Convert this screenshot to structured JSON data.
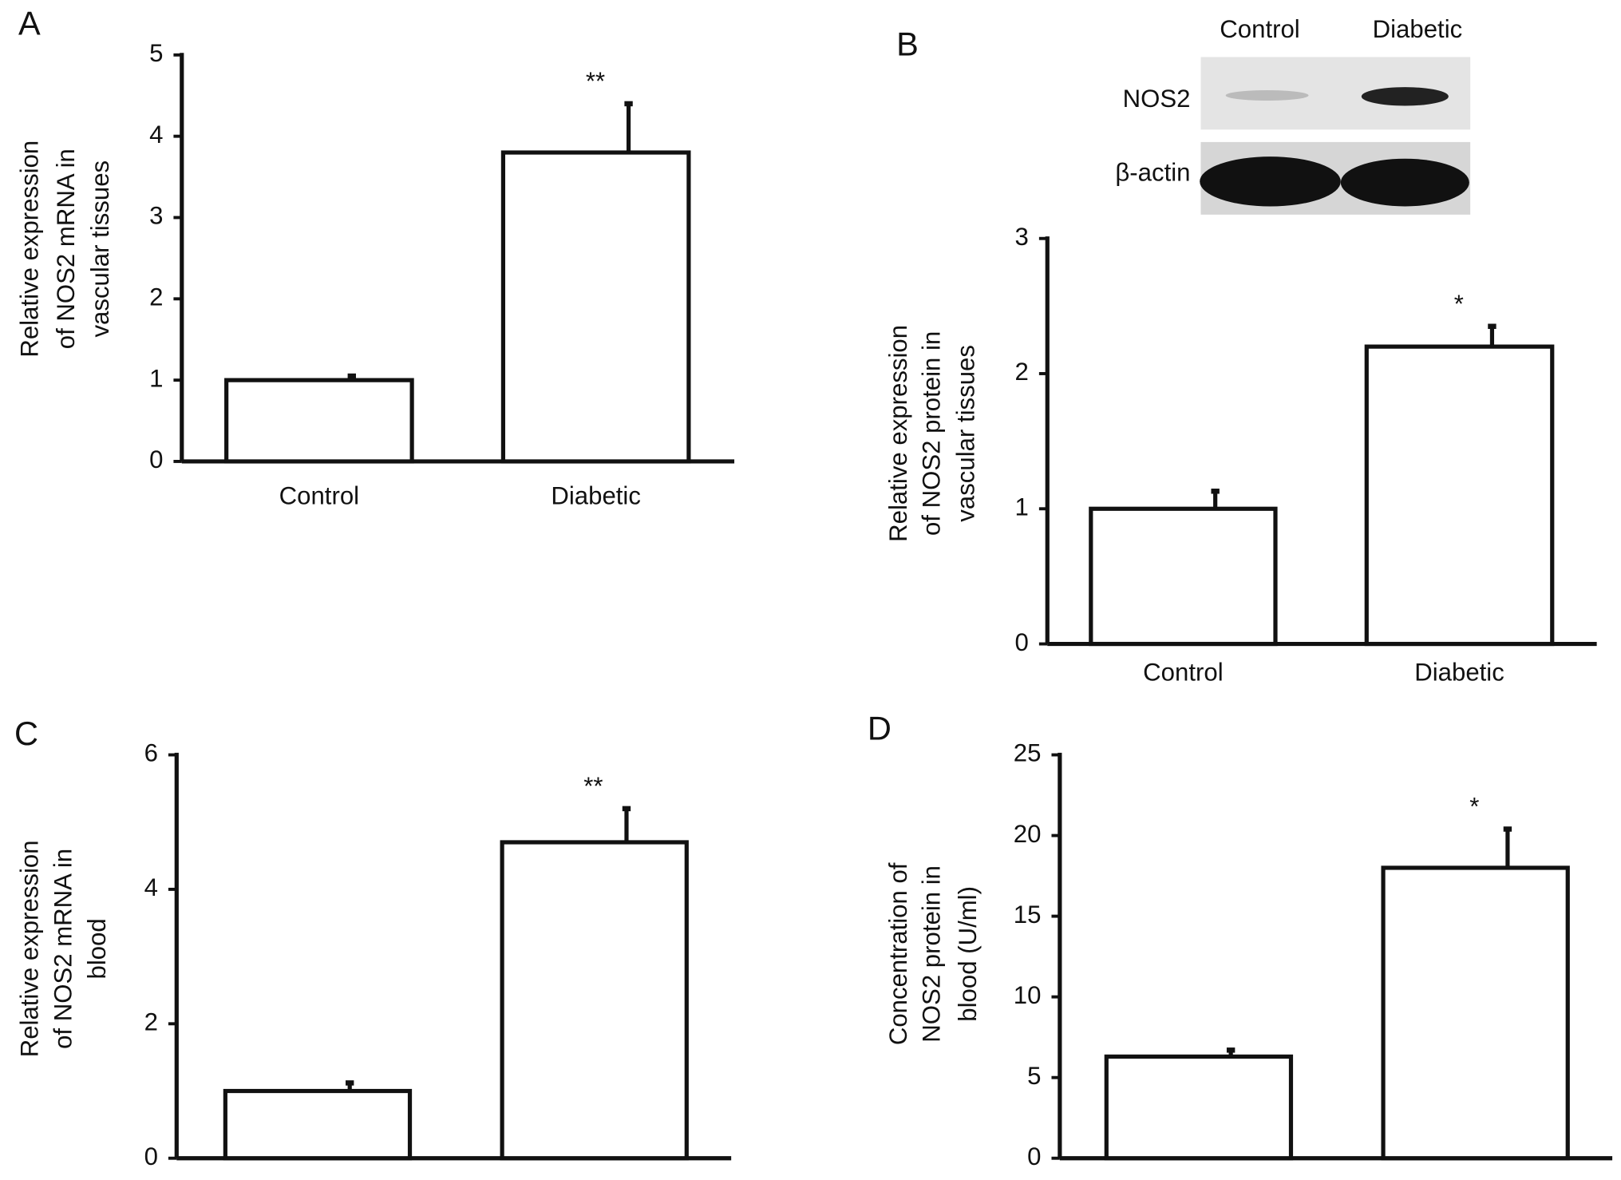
{
  "chart_data": [
    {
      "type": "bar",
      "panel": "A",
      "ylabel": [
        "Relative expression",
        "of NOS2 mRNA in",
        "vascular tissues"
      ],
      "categories": [
        "Control",
        "Diabetic"
      ],
      "values": [
        1.0,
        3.8
      ],
      "errors": [
        0.05,
        0.6
      ],
      "value_annotations": [
        null,
        "**"
      ],
      "color": "#ffffff",
      "ylim": [
        0,
        5
      ],
      "yticks": [
        0,
        1,
        2,
        3,
        4,
        5
      ]
    },
    {
      "type": "bar",
      "panel": "B",
      "ylabel": [
        "Relative expression",
        "of NOS2 protein in",
        "vascular tissues"
      ],
      "categories": [
        "Control",
        "Diabetic"
      ],
      "values": [
        1.0,
        2.2
      ],
      "errors": [
        0.13,
        0.15
      ],
      "value_annotations": [
        null,
        "*"
      ],
      "color": "#ffffff",
      "ylim": [
        0,
        3
      ],
      "yticks": [
        0,
        1,
        2,
        3
      ],
      "blot": {
        "columns": [
          "Control",
          "Diabetic"
        ],
        "rows": [
          "NOS2",
          "β-actin"
        ]
      }
    },
    {
      "type": "bar",
      "panel": "C",
      "ylabel": [
        "Relative expression",
        "of NOS2 mRNA in",
        "blood"
      ],
      "categories": [
        null,
        null
      ],
      "values": [
        1.0,
        4.7
      ],
      "errors": [
        0.12,
        0.5
      ],
      "value_annotations": [
        null,
        "**"
      ],
      "color": "#ffffff",
      "ylim": [
        0,
        6
      ],
      "yticks": [
        0,
        2,
        4,
        6
      ]
    },
    {
      "type": "bar",
      "panel": "D",
      "ylabel": [
        "Concentration of",
        "NOS2 protein in",
        "blood (U/ml)"
      ],
      "categories": [
        null,
        null
      ],
      "values": [
        6.3,
        18.0
      ],
      "errors": [
        0.4,
        2.4
      ],
      "value_annotations": [
        null,
        "*"
      ],
      "color": "#ffffff",
      "ylim": [
        0,
        25
      ],
      "yticks": [
        0,
        5,
        10,
        15,
        20,
        25
      ]
    }
  ]
}
